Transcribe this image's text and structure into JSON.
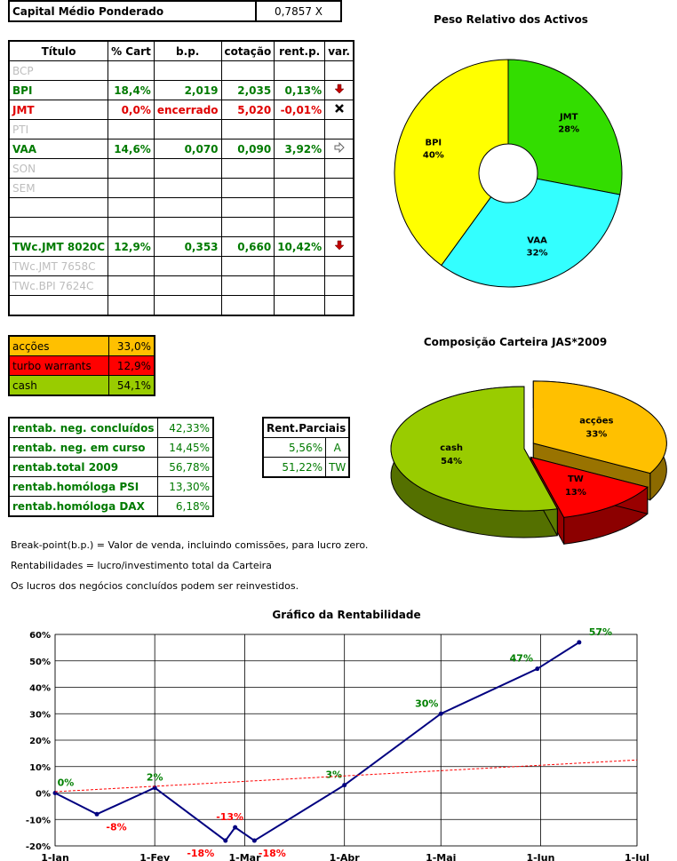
{
  "capital": {
    "label": "Capital Médio Ponderado",
    "value": "0,7857 X"
  },
  "assets": {
    "headers": [
      "Título",
      "% Cart",
      "b.p.",
      "cotação",
      "rent.p.",
      "var."
    ],
    "rows": [
      {
        "titulo": "BCP",
        "cart": "",
        "bp": "",
        "cot": "",
        "rent": "",
        "var": "",
        "style": "grey"
      },
      {
        "titulo": "BPI",
        "cart": "18,4%",
        "bp": "2,019",
        "cot": "2,035",
        "rent": "0,13%",
        "var": "down",
        "style": "green"
      },
      {
        "titulo": "JMT",
        "cart": "0,0%",
        "bp": "encerrado",
        "cot": "5,020",
        "rent": "-0,01%",
        "var": "closed",
        "style": "red"
      },
      {
        "titulo": "PTI",
        "cart": "",
        "bp": "",
        "cot": "",
        "rent": "",
        "var": "",
        "style": "grey"
      },
      {
        "titulo": "VAA",
        "cart": "14,6%",
        "bp": "0,070",
        "cot": "0,090",
        "rent": "3,92%",
        "var": "right",
        "style": "green"
      },
      {
        "titulo": "SON",
        "cart": "",
        "bp": "",
        "cot": "",
        "rent": "",
        "var": "",
        "style": "grey"
      },
      {
        "titulo": "SEM",
        "cart": "",
        "bp": "",
        "cot": "",
        "rent": "",
        "var": "",
        "style": "grey"
      },
      {
        "titulo": "",
        "cart": "",
        "bp": "",
        "cot": "",
        "rent": "",
        "var": "",
        "style": "grey"
      },
      {
        "titulo": "",
        "cart": "",
        "bp": "",
        "cot": "",
        "rent": "",
        "var": "",
        "style": "grey"
      },
      {
        "titulo": "TWc.JMT 8020C",
        "cart": "12,9%",
        "bp": "0,353",
        "cot": "0,660",
        "rent": "10,42%",
        "var": "down",
        "style": "green"
      },
      {
        "titulo": "TWc.JMT 7658C",
        "cart": "",
        "bp": "",
        "cot": "",
        "rent": "",
        "var": "",
        "style": "grey"
      },
      {
        "titulo": "TWc.BPI 7624C",
        "cart": "",
        "bp": "",
        "cot": "",
        "rent": "",
        "var": "",
        "style": "grey"
      },
      {
        "titulo": "",
        "cart": "",
        "bp": "",
        "cot": "",
        "rent": "",
        "var": "",
        "style": "grey"
      }
    ]
  },
  "composition": [
    {
      "label": "acções",
      "value": "33,0%",
      "bg": "#ffc000",
      "fg": "#000000"
    },
    {
      "label": "turbo warrants",
      "value": "12,9%",
      "bg": "#ff0000",
      "fg": "#000000"
    },
    {
      "label": "cash",
      "value": "54,1%",
      "bg": "#99cc00",
      "fg": "#000000"
    }
  ],
  "returns": [
    {
      "label": "rentab. neg. concluídos",
      "value": "42,33%"
    },
    {
      "label": "rentab. neg. em curso",
      "value": "14,45%"
    },
    {
      "label": "rentab.total 2009",
      "value": "56,78%"
    },
    {
      "label": "rentab.homóloga PSI",
      "value": "13,30%"
    },
    {
      "label": "rentab.homóloga DAX",
      "value": "6,18%"
    }
  ],
  "partials": {
    "header": "Rent.Parciais",
    "rows": [
      {
        "value": "5,56%",
        "tag": "A"
      },
      {
        "value": "51,22%",
        "tag": "TW"
      }
    ]
  },
  "notes": [
    "Break-point(b.p.) = Valor de venda, incluindo comissões, para lucro zero.",
    "Rentabilidades = lucro/investimento total da Carteira",
    "Os lucros dos negócios concluídos podem ser reinvestidos."
  ],
  "chart_data": [
    {
      "type": "pie",
      "title": "Peso Relativo dos Activos",
      "donut": true,
      "slices": [
        {
          "label": "JMT",
          "value": 28,
          "display": "28%",
          "color": "#33dd00"
        },
        {
          "label": "VAA",
          "value": 32,
          "display": "32%",
          "color": "#33ffff"
        },
        {
          "label": "BPI",
          "value": 40,
          "display": "40%",
          "color": "#ffff00"
        }
      ]
    },
    {
      "type": "pie",
      "title": "Composição Carteira JAS*2009",
      "three_d": true,
      "slices": [
        {
          "label": "acções",
          "value": 33,
          "display": "33%",
          "color": "#ffc000"
        },
        {
          "label": "TW",
          "value": 13,
          "display": "13%",
          "color": "#ff0000"
        },
        {
          "label": "cash",
          "value": 54,
          "display": "54%",
          "color": "#99cc00"
        }
      ]
    },
    {
      "type": "line",
      "title": "Gráfico da Rentabilidade",
      "x_ticks": [
        "1-Jan",
        "1-Fev",
        "1-Mar",
        "1-Abr",
        "1-Mai",
        "1-Jun",
        "1-Jul"
      ],
      "x_tick_days": [
        0,
        31,
        59,
        90,
        120,
        151,
        181
      ],
      "ylim": [
        -20,
        60
      ],
      "y_ticks": [
        "-20%",
        "-10%",
        "0%",
        "10%",
        "20%",
        "30%",
        "40%",
        "50%",
        "60%"
      ],
      "y_tick_values": [
        -20,
        -10,
        0,
        10,
        20,
        30,
        40,
        50,
        60
      ],
      "grid": true,
      "series": [
        {
          "color": "#000080",
          "points": [
            {
              "x": 0,
              "y": 0,
              "label": "0%",
              "lc": "#008000"
            },
            {
              "x": 13,
              "y": -8,
              "label": "-8%",
              "lc": "#ff0000"
            },
            {
              "x": 31,
              "y": 2,
              "label": "2%",
              "lc": "#008000"
            },
            {
              "x": 53,
              "y": -18,
              "label": "-18%",
              "lc": "#ff0000"
            },
            {
              "x": 56,
              "y": -13,
              "label": "-13%",
              "lc": "#ff0000"
            },
            {
              "x": 62,
              "y": -18,
              "label": "-18%",
              "lc": "#ff0000"
            },
            {
              "x": 90,
              "y": 3,
              "label": "3%",
              "lc": "#008000"
            },
            {
              "x": 120,
              "y": 30,
              "label": "30%",
              "lc": "#008000"
            },
            {
              "x": 150,
              "y": 47,
              "label": "47%",
              "lc": "#008000"
            },
            {
              "x": 163,
              "y": 57,
              "label": "57%",
              "lc": "#008000"
            }
          ]
        },
        {
          "dashed": true,
          "color": "#ff0000",
          "points": [
            {
              "x": 0,
              "y": 0.5
            },
            {
              "x": 181,
              "y": 12.5
            }
          ]
        }
      ]
    }
  ]
}
